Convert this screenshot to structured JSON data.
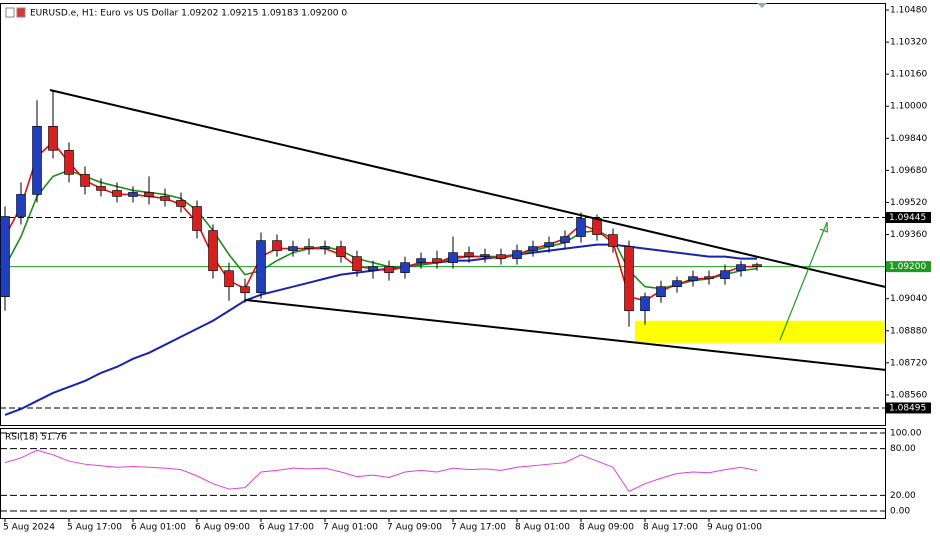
{
  "chart_data": [
    {
      "type": "candlestick",
      "title": "EURUSD.e, H1:  Euro vs US Dollar  1.09202 1.09215 1.09183 1.09200  0",
      "categories": [
        "5 Aug 2024",
        null,
        null,
        null,
        "5 Aug 17:00",
        null,
        null,
        null,
        "6 Aug 01:00",
        null,
        null,
        null,
        "6 Aug 09:00",
        null,
        null,
        null,
        "6 Aug 17:00",
        null,
        null,
        null,
        "7 Aug 01:00",
        null,
        null,
        null,
        "7 Aug 09:00",
        null,
        null,
        null,
        "7 Aug 17:00",
        null,
        null,
        null,
        "8 Aug 01:00",
        null,
        null,
        null,
        "8 Aug 09:00",
        null,
        null,
        null,
        "8 Aug 17:00",
        null,
        null,
        null,
        "9 Aug 01:00",
        null,
        null,
        null
      ],
      "open": [
        1.0905,
        1.0945,
        1.0956,
        1.099,
        1.0978,
        1.0966,
        1.096,
        1.0958,
        1.0955,
        1.0957,
        1.0955,
        1.0953,
        1.095,
        1.0938,
        1.0918,
        1.091,
        1.0907,
        1.0933,
        1.0928,
        1.093,
        1.0929,
        1.093,
        1.0925,
        1.0918,
        1.092,
        1.0917,
        1.0922,
        1.0924,
        1.0922,
        1.0927,
        1.0925,
        1.0926,
        1.0924,
        1.0928,
        1.093,
        1.0932,
        1.0935,
        1.0944,
        1.0936,
        1.093,
        1.0898,
        1.0905,
        1.091,
        1.0913,
        1.0915,
        1.0914,
        1.0918,
        1.0921
      ],
      "high": [
        1.095,
        1.0962,
        1.1003,
        1.1008,
        1.0982,
        1.097,
        1.0964,
        1.0962,
        1.096,
        1.0965,
        1.0959,
        1.0957,
        1.0953,
        1.0941,
        1.0922,
        1.0914,
        1.0937,
        1.0936,
        1.0933,
        1.0934,
        1.0933,
        1.0933,
        1.0928,
        1.0923,
        1.0923,
        1.0925,
        1.0927,
        1.0928,
        1.0935,
        1.093,
        1.0929,
        1.0929,
        1.0931,
        1.0933,
        1.0935,
        1.0938,
        1.0947,
        1.0946,
        1.0939,
        1.0933,
        1.0907,
        1.0913,
        1.0915,
        1.0918,
        1.0918,
        1.0921,
        1.0923,
        1.0922
      ],
      "low": [
        1.0898,
        1.0941,
        1.0952,
        1.0974,
        1.0962,
        1.0956,
        1.0955,
        1.0952,
        1.0952,
        1.0951,
        1.095,
        1.0947,
        1.0934,
        1.0914,
        1.0903,
        1.0902,
        1.0904,
        1.0925,
        1.0925,
        1.0926,
        1.0926,
        1.0922,
        1.0915,
        1.0914,
        1.0913,
        1.0914,
        1.0919,
        1.0919,
        1.0919,
        1.0922,
        1.0922,
        1.0921,
        1.0921,
        1.0925,
        1.0927,
        1.0929,
        1.0932,
        1.0933,
        1.0927,
        1.089,
        1.0891,
        1.0902,
        1.0907,
        1.091,
        1.0911,
        1.0911,
        1.0915,
        1.0918
      ],
      "close": [
        1.0945,
        1.0956,
        1.099,
        1.0978,
        1.0966,
        1.096,
        1.0958,
        1.0955,
        1.0957,
        1.0955,
        1.0953,
        1.095,
        1.0938,
        1.0918,
        1.091,
        1.0907,
        1.0933,
        1.0928,
        1.093,
        1.0929,
        1.093,
        1.0925,
        1.0918,
        1.092,
        1.0917,
        1.0922,
        1.0924,
        1.0922,
        1.0927,
        1.0925,
        1.0926,
        1.0924,
        1.0928,
        1.093,
        1.0932,
        1.0935,
        1.0944,
        1.0936,
        1.093,
        1.0898,
        1.0905,
        1.091,
        1.0913,
        1.0915,
        1.0914,
        1.0918,
        1.0921,
        1.092
      ],
      "up_color": "#1f3fbf",
      "down_color": "#d42020",
      "overlays": [
        {
          "color": "#1a22b0",
          "values": [
            1.0846,
            1.0849,
            1.0853,
            1.0857,
            1.086,
            1.0863,
            1.0867,
            1.087,
            1.0874,
            1.0877,
            1.0881,
            1.0885,
            1.0889,
            1.0893,
            1.0898,
            1.0903,
            1.0906,
            1.0908,
            1.091,
            1.0912,
            1.0914,
            1.0916,
            1.0917,
            1.0918,
            1.0919,
            1.092,
            1.0921,
            1.0922,
            1.0923,
            1.0923,
            1.0924,
            1.0925,
            1.0926,
            1.0927,
            1.0928,
            1.0929,
            1.093,
            1.0931,
            1.0931,
            1.093,
            1.0929,
            1.0928,
            1.0927,
            1.0926,
            1.0925,
            1.0925,
            1.0924,
            1.0924
          ]
        },
        {
          "color": "#1e8c1e",
          "values": [
            1.092,
            1.0935,
            1.0955,
            1.0965,
            1.0968,
            1.0965,
            1.0962,
            1.096,
            1.0958,
            1.0957,
            1.0956,
            1.0954,
            1.0948,
            1.0938,
            1.0926,
            1.0916,
            1.0918,
            1.0923,
            1.0927,
            1.0929,
            1.093,
            1.0928,
            1.0924,
            1.0922,
            1.092,
            1.092,
            1.0921,
            1.0922,
            1.0924,
            1.0925,
            1.0925,
            1.0925,
            1.0926,
            1.0928,
            1.093,
            1.0932,
            1.0937,
            1.0938,
            1.0934,
            1.0918,
            1.091,
            1.0909,
            1.0911,
            1.0913,
            1.0914,
            1.0916,
            1.0918,
            1.0919
          ]
        },
        {
          "color": "#e01010",
          "values": [
            1.0935,
            1.095,
            1.0975,
            1.0982,
            1.0972,
            1.0963,
            1.0959,
            1.0956,
            1.0956,
            1.0955,
            1.0954,
            1.0951,
            1.0942,
            1.0925,
            1.0913,
            1.0909,
            1.0925,
            1.0929,
            1.0929,
            1.0929,
            1.0929,
            1.0926,
            1.092,
            1.0919,
            1.0918,
            1.092,
            1.0922,
            1.0922,
            1.0925,
            1.0925,
            1.0925,
            1.0924,
            1.0926,
            1.0929,
            1.0931,
            1.0934,
            1.0941,
            1.0938,
            1.0932,
            1.0905,
            1.0903,
            1.0908,
            1.0911,
            1.0914,
            1.0914,
            1.0917,
            1.092,
            1.092
          ]
        }
      ],
      "xlim": [
        -0.3125,
        55
      ],
      "ylim": [
        1.0841,
        1.10515
      ],
      "yticks": [
        {
          "value": 1.1048,
          "label": "1.10480"
        },
        {
          "value": 1.1032,
          "label": "1.10320"
        },
        {
          "value": 1.1016,
          "label": "1.10160"
        },
        {
          "value": 1.1,
          "label": "1.10000"
        },
        {
          "value": 1.0984,
          "label": "1.09840"
        },
        {
          "value": 1.0968,
          "label": "1.09680"
        },
        {
          "value": 1.0952,
          "label": "1.09520"
        },
        {
          "value": 1.0936,
          "label": "1.09360"
        },
        {
          "value": 1.092,
          "label": "1.09200"
        },
        {
          "value": 1.0904,
          "label": "1.09040"
        },
        {
          "value": 1.0888,
          "label": "1.08880"
        },
        {
          "value": 1.0872,
          "label": "1.08720"
        },
        {
          "value": 1.0856,
          "label": "1.08560"
        }
      ],
      "price_levels": [
        {
          "value": 1.09445,
          "label": "1.09445",
          "style": "dashed",
          "color": "#000000"
        },
        {
          "value": 1.092,
          "label": "1.09200",
          "style": "solid",
          "color": "#1e9c1e"
        },
        {
          "value": 1.08495,
          "label": "1.08495",
          "style": "dashed",
          "color": "#000000"
        }
      ],
      "trendlines": [
        {
          "x": [
            2.81,
            55
          ],
          "y": [
            1.10081,
            1.09099
          ],
          "color": "#000000"
        },
        {
          "x": [
            15,
            55
          ],
          "y": [
            1.09034,
            1.08685
          ],
          "color": "#000000"
        },
        {
          "x": [
            48.44,
            51.38
          ],
          "y": [
            1.08834,
            1.09423
          ],
          "color": "#1e9c1e",
          "arrow": true
        }
      ],
      "zones": [
        {
          "x": [
            39.375,
            55
          ],
          "y": [
            1.0882,
            1.0893
          ],
          "color": "#ffff00"
        }
      ]
    },
    {
      "type": "line",
      "title": "RSI(18) 51.76",
      "values": [
        62,
        68,
        78,
        72,
        64,
        60,
        58,
        56,
        57,
        56,
        55,
        53,
        45,
        35,
        28,
        30,
        50,
        52,
        55,
        54,
        55,
        50,
        44,
        46,
        43,
        50,
        52,
        50,
        55,
        53,
        54,
        52,
        56,
        58,
        60,
        62,
        72,
        64,
        56,
        25,
        35,
        42,
        48,
        50,
        49,
        53,
        56,
        51.76
      ],
      "color": "#e040e0",
      "xlim": [
        -0.3125,
        55
      ],
      "ylim": [
        -9,
        106.4
      ],
      "yticks": [
        {
          "value": 100,
          "label": "100.00"
        },
        {
          "value": 80,
          "label": "80.00"
        },
        {
          "value": 20,
          "label": "20.00"
        },
        {
          "value": 0,
          "label": "0.00"
        }
      ]
    }
  ]
}
